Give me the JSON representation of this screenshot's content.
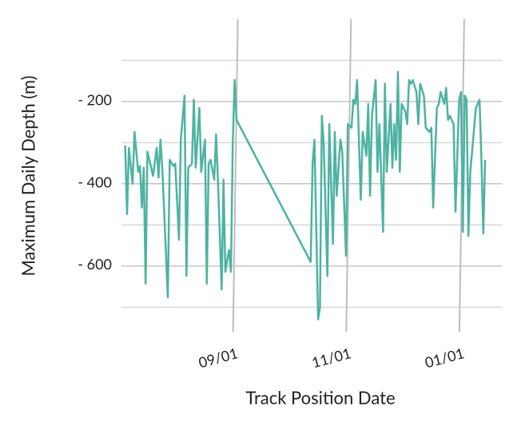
{
  "chart_data": {
    "type": "line",
    "x_label": "Track Position Date",
    "y_label": "Maximum Daily Depth (m)",
    "x": [
      "07/04",
      "07/05",
      "07/06",
      "07/08",
      "07/09",
      "07/11",
      "07/12",
      "07/13",
      "07/14",
      "07/15",
      "07/16",
      "07/19",
      "07/21",
      "07/22",
      "07/23",
      "07/24",
      "07/27",
      "07/28",
      "07/30",
      "07/31",
      "08/02",
      "08/03",
      "08/05",
      "08/06",
      "08/07",
      "08/09",
      "08/10",
      "08/11",
      "08/13",
      "08/14",
      "08/16",
      "08/17",
      "08/18",
      "08/19",
      "08/21",
      "08/22",
      "08/23",
      "08/25",
      "08/26",
      "08/27",
      "08/28",
      "08/29",
      "08/30",
      "08/31",
      "09/01",
      "09/02",
      "10/12",
      "10/13",
      "10/14",
      "10/16",
      "10/17",
      "10/18",
      "10/19",
      "10/21",
      "10/22",
      "10/24",
      "10/25",
      "10/26",
      "10/28",
      "10/29",
      "10/31",
      "11/01",
      "11/03",
      "11/04",
      "11/05",
      "11/06",
      "11/08",
      "11/09",
      "11/11",
      "11/12",
      "11/13",
      "11/14",
      "11/16",
      "11/17",
      "11/18",
      "11/20",
      "11/21",
      "11/22",
      "11/24",
      "11/25",
      "11/26",
      "11/27",
      "11/28",
      "11/29",
      "11/30",
      "12/02",
      "12/03",
      "12/04",
      "12/05",
      "12/06",
      "12/08",
      "12/09",
      "12/10",
      "12/12",
      "12/13",
      "12/15",
      "12/16",
      "12/17",
      "12/19",
      "12/20",
      "12/21",
      "12/23",
      "12/24",
      "12/25",
      "12/26",
      "12/28",
      "12/29",
      "12/31",
      "01/01",
      "01/02",
      "01/03",
      "01/04",
      "01/05",
      "01/06",
      "01/07",
      "01/09",
      "01/11",
      "01/12",
      "01/13",
      "01/14"
    ],
    "series": [
      {
        "name": "Maximum Daily Depth",
        "color": "#4db3a2",
        "values": [
          -307,
          -474,
          -313,
          -400,
          -274,
          -371,
          -357,
          -458,
          -361,
          -643,
          -322,
          -381,
          -313,
          -385,
          -293,
          -361,
          -676,
          -342,
          -357,
          -351,
          -536,
          -293,
          -186,
          -624,
          -361,
          -351,
          -196,
          -361,
          -216,
          -371,
          -293,
          -643,
          -351,
          -342,
          -390,
          -280,
          -390,
          -657,
          -390,
          -614,
          -585,
          -561,
          -614,
          -303,
          -148,
          -245,
          -590,
          -351,
          -293,
          -730,
          -701,
          -235,
          -303,
          -624,
          -255,
          -546,
          -274,
          -429,
          -293,
          -322,
          -575,
          -255,
          -264,
          -196,
          -206,
          -148,
          -439,
          -274,
          -332,
          -206,
          -429,
          -235,
          -148,
          -371,
          -255,
          -517,
          -157,
          -371,
          -206,
          -361,
          -255,
          -342,
          -128,
          -371,
          -206,
          -225,
          -255,
          -148,
          -157,
          -148,
          -177,
          -255,
          -157,
          -186,
          -264,
          -274,
          -264,
          -458,
          -216,
          -206,
          -177,
          -206,
          -167,
          -245,
          -235,
          -255,
          -468,
          -196,
          -177,
          -517,
          -186,
          -196,
          -527,
          -371,
          -322,
          -216,
          -196,
          -342,
          -521,
          -342
        ]
      }
    ],
    "xlim": [
      "07/02",
      "01/23"
    ],
    "xticks": [
      "09/01",
      "11/01",
      "01/01"
    ],
    "ylim": [
      -760,
      0
    ],
    "yticks": [
      {
        "value": -200,
        "label": "- 200"
      },
      {
        "value": -400,
        "label": "- 400"
      },
      {
        "value": -600,
        "label": "- 600"
      }
    ],
    "minor_yticks": [
      -100,
      -300,
      -500,
      -700
    ],
    "grid": true
  }
}
